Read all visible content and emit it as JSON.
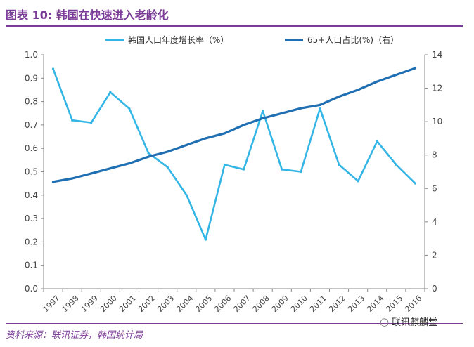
{
  "header": {
    "title": "图表 10: 韩国在快速进入老龄化"
  },
  "footer": {
    "source": "资料来源：联讯证券，韩国统计局",
    "watermark": "联讯麒麟堂",
    "watermark_icon": "wechat-icon"
  },
  "chart_data": {
    "type": "line",
    "title": "图表 10: 韩国在快速进入老龄化",
    "categories": [
      "1997",
      "1998",
      "1999",
      "2000",
      "2001",
      "2002",
      "2003",
      "2004",
      "2005",
      "2006",
      "2007",
      "2008",
      "2009",
      "2010",
      "2011",
      "2012",
      "2013",
      "2014",
      "2015",
      "2016"
    ],
    "series": [
      {
        "name": "韩国人口年度增长率（%）",
        "axis": "left",
        "color": "#33b5e5",
        "values": [
          0.94,
          0.72,
          0.71,
          0.84,
          0.77,
          0.58,
          0.52,
          0.4,
          0.21,
          0.53,
          0.51,
          0.76,
          0.51,
          0.5,
          0.77,
          0.53,
          0.46,
          0.63,
          0.53,
          0.45
        ]
      },
      {
        "name": "65+人口占比(%)（右）",
        "axis": "right",
        "color": "#1f6fb2",
        "values": [
          6.4,
          6.6,
          6.9,
          7.2,
          7.5,
          7.9,
          8.2,
          8.6,
          9.0,
          9.3,
          9.8,
          10.2,
          10.5,
          10.8,
          11.0,
          11.5,
          11.9,
          12.4,
          12.8,
          13.2
        ]
      }
    ],
    "ylim_left": [
      0,
      1
    ],
    "yticks_left": [
      "0.0",
      "0.1",
      "0.2",
      "0.3",
      "0.4",
      "0.5",
      "0.6",
      "0.7",
      "0.8",
      "0.9",
      "1.0"
    ],
    "ylim_right": [
      0,
      14
    ],
    "yticks_right": [
      "0",
      "2",
      "4",
      "6",
      "8",
      "10",
      "12",
      "14"
    ],
    "grid": false,
    "legend_position": "top"
  }
}
